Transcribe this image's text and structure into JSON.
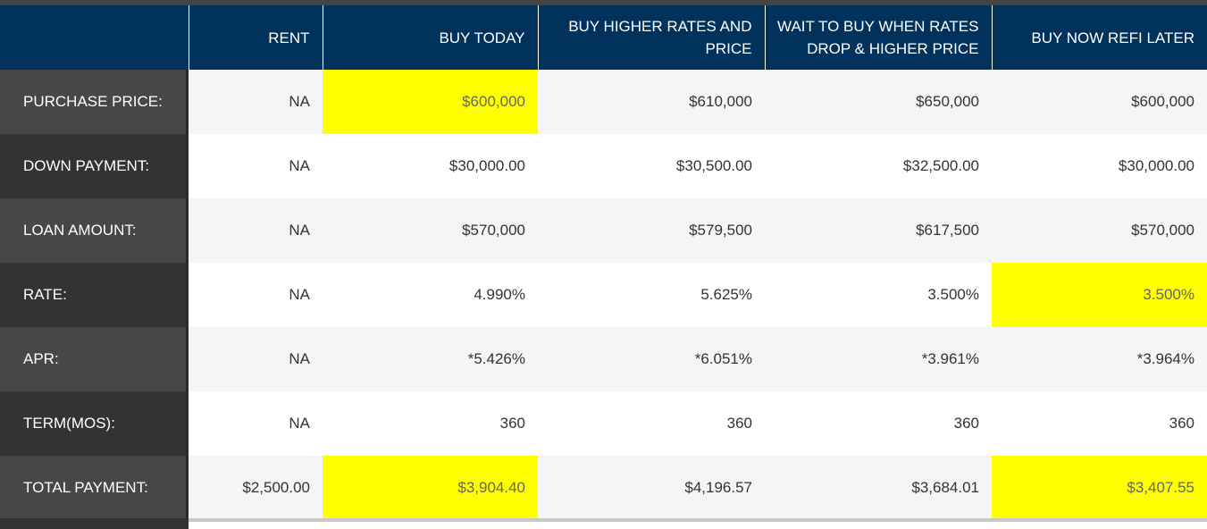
{
  "columns": [
    "",
    "RENT",
    "BUY TODAY",
    "BUY HIGHER RATES AND PRICE",
    "WAIT TO BUY WHEN RATES DROP & HIGHER PRICE",
    "BUY NOW REFI LATER"
  ],
  "rows": [
    {
      "label": "PURCHASE PRICE:",
      "values": [
        "NA",
        "$600,000",
        "$610,000",
        "$650,000",
        "$600,000"
      ]
    },
    {
      "label": "DOWN PAYMENT:",
      "values": [
        "NA",
        "$30,000.00",
        "$30,500.00",
        "$32,500.00",
        "$30,000.00"
      ]
    },
    {
      "label": "LOAN AMOUNT:",
      "values": [
        "NA",
        "$570,000",
        "$579,500",
        "$617,500",
        "$570,000"
      ]
    },
    {
      "label": "RATE:",
      "values": [
        "NA",
        "4.990%",
        "5.625%",
        "3.500%",
        "3.500%"
      ]
    },
    {
      "label": "APR:",
      "values": [
        "NA",
        "*5.426%",
        "*6.051%",
        "*3.961%",
        "*3.964%"
      ]
    },
    {
      "label": "TERM(MOS):",
      "values": [
        "NA",
        "360",
        "360",
        "360",
        "360"
      ]
    },
    {
      "label": "TOTAL PAYMENT:",
      "values": [
        "$2,500.00",
        "$3,904.40",
        "$4,196.57",
        "$3,684.01",
        "$3,407.55"
      ]
    }
  ],
  "colors": {
    "header_bg": "#00325b",
    "highlight": "#ffff00",
    "rowhead_dark": "#333333",
    "rowhead_light": "#474747"
  }
}
